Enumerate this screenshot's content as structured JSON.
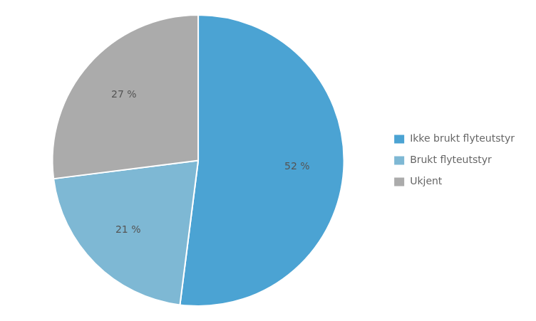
{
  "chart_data": {
    "type": "pie",
    "categories": [
      "Ikke brukt flyteutstyr",
      "Brukt flyteutstyr",
      "Ukjent"
    ],
    "values": [
      52,
      21,
      27
    ],
    "value_labels": [
      "52 %",
      "21 %",
      "27 %"
    ],
    "colors": [
      "#4BA3D3",
      "#7EB8D4",
      "#ABABAB"
    ],
    "data_labels": true,
    "legend": "right"
  }
}
